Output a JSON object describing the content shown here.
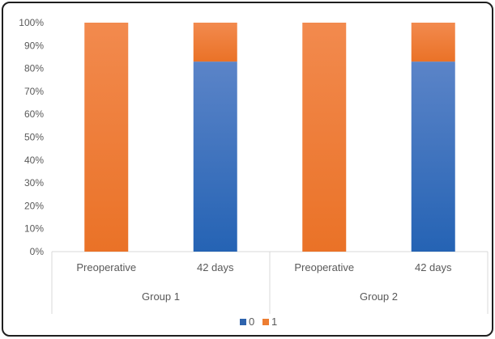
{
  "chart_data": {
    "type": "bar",
    "stacked": "percent",
    "groups": [
      {
        "label": "Group 1",
        "categories": [
          "Preoperative",
          "42 days"
        ]
      },
      {
        "label": "Group 2",
        "categories": [
          "Preoperative",
          "42 days"
        ]
      }
    ],
    "categories": [
      "Preoperative",
      "42 days",
      "Preoperative",
      "42 days"
    ],
    "series": [
      {
        "name": "0",
        "color": "#2e63ad",
        "values": [
          0,
          83,
          0,
          83
        ]
      },
      {
        "name": "1",
        "color": "#ed7d31",
        "values": [
          100,
          17,
          100,
          17
        ]
      }
    ],
    "yticks": [
      "0%",
      "10%",
      "20%",
      "30%",
      "40%",
      "50%",
      "60%",
      "70%",
      "80%",
      "90%",
      "100%"
    ],
    "ylim": [
      0,
      100
    ],
    "grid": false,
    "legend_position": "bottom"
  }
}
